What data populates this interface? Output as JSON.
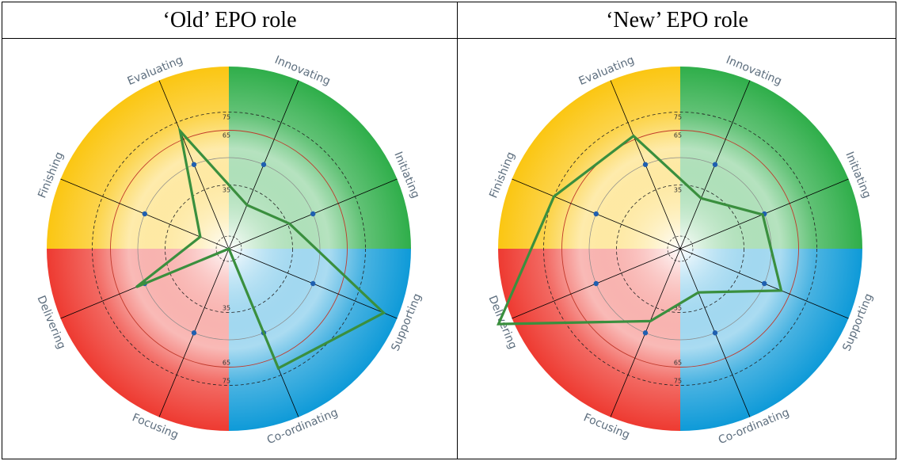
{
  "table": {
    "headers": [
      "‘Old’ EPO role",
      "‘New’ EPO role"
    ]
  },
  "chart_data": [
    {
      "type": "radar",
      "title": "‘Old’ EPO role",
      "axes": [
        "Innovating",
        "Initiating",
        "Supporting",
        "Co-ordinating",
        "Focusing",
        "Delivering",
        "Finishing",
        "Evaluating"
      ],
      "rlim": [
        0,
        100
      ],
      "rings": [
        35,
        65,
        75
      ],
      "ring_labels": [
        "35",
        "65",
        "75"
      ],
      "series": [
        {
          "values": [
            26,
            36,
            92,
            71,
            0,
            55,
            17,
            70
          ]
        }
      ],
      "reference_values": [
        50,
        50,
        50,
        50,
        50,
        50,
        50,
        50
      ],
      "colors": {
        "green": "#2fae4a",
        "blue": "#0e9ad8",
        "red": "#ee3a31",
        "yellow": "#fbc612",
        "line": "#3a8f3e",
        "dot": "#1f5fb0"
      }
    },
    {
      "type": "radar",
      "title": "‘New’ EPO role",
      "axes": [
        "Innovating",
        "Initiating",
        "Supporting",
        "Co-ordinating",
        "Focusing",
        "Delivering",
        "Finishing",
        "Evaluating"
      ],
      "rlim": [
        0,
        100
      ],
      "rings": [
        35,
        65,
        75
      ],
      "ring_labels": [
        "35",
        "65",
        "75"
      ],
      "series": [
        {
          "values": [
            30,
            49,
            60,
            26,
            43,
            108,
            75,
            67
          ]
        }
      ],
      "reference_values": [
        50,
        50,
        50,
        50,
        50,
        50,
        50,
        50
      ],
      "colors": {
        "green": "#2fae4a",
        "blue": "#0e9ad8",
        "red": "#ee3a31",
        "yellow": "#fbc612",
        "line": "#3a8f3e",
        "dot": "#1f5fb0"
      }
    }
  ]
}
